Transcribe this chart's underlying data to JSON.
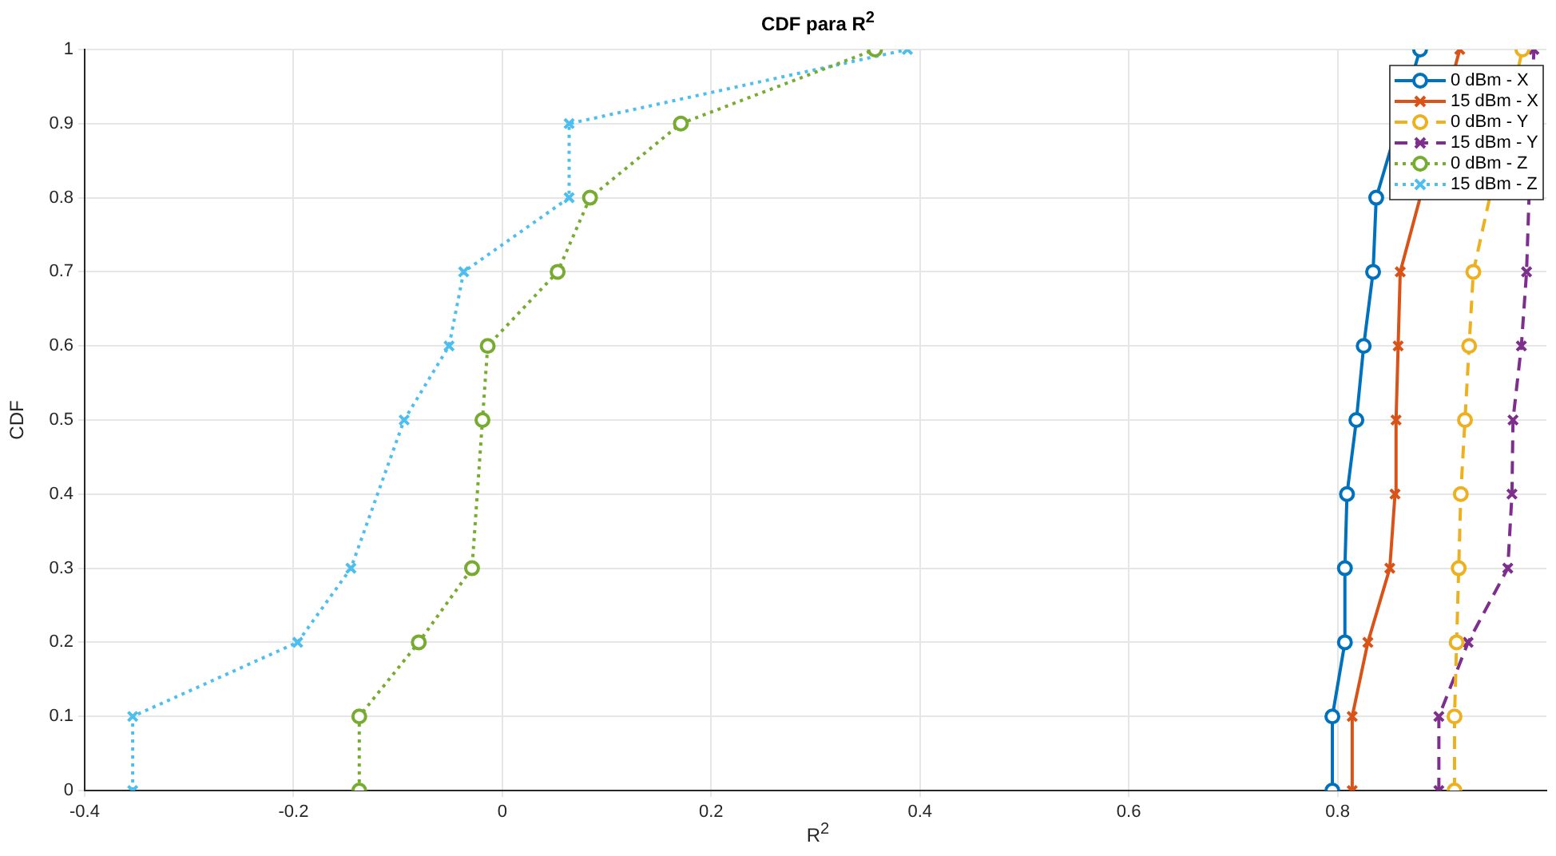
{
  "chart_data": {
    "type": "line",
    "title": "CDF para R$^{2}$",
    "xlabel": "R$^{2}$",
    "ylabel": "CDF",
    "xlim": [
      -0.4,
      1
    ],
    "xticks": [
      -0.4,
      -0.2,
      0,
      0.2,
      0.4,
      0.6,
      0.8
    ],
    "ylim": [
      0,
      1
    ],
    "yticks": [
      0,
      0.1,
      0.2,
      0.3,
      0.4,
      0.5,
      0.6,
      0.7,
      0.8,
      0.9,
      1
    ],
    "grid": true,
    "legend": "top right",
    "series": [
      {
        "name": "0 dBm - X",
        "color": "#0072bd",
        "marker": "circle",
        "line_style": "solid",
        "x": [
          0.795,
          0.795,
          0.807,
          0.807,
          0.809,
          0.818,
          0.825,
          0.834,
          0.837,
          0.879
        ],
        "values": [
          0,
          0.1,
          0.2,
          0.3,
          0.4,
          0.5,
          0.6,
          0.7,
          0.8,
          1
        ]
      },
      {
        "name": "15 dBm - X",
        "color": "#d95319",
        "marker": "cross",
        "line_style": "solid",
        "x": [
          0.814,
          0.814,
          0.829,
          0.85,
          0.855,
          0.856,
          0.858,
          0.86,
          0.917
        ],
        "values": [
          0,
          0.1,
          0.2,
          0.3,
          0.4,
          0.5,
          0.6,
          0.7,
          1
        ]
      },
      {
        "name": "0 dBm - Y",
        "color": "#edb120",
        "marker": "circle",
        "line_style": "dashed",
        "x": [
          0.912,
          0.912,
          0.914,
          0.916,
          0.918,
          0.922,
          0.926,
          0.93,
          0.977
        ],
        "values": [
          0,
          0.1,
          0.2,
          0.3,
          0.4,
          0.5,
          0.6,
          0.7,
          1
        ]
      },
      {
        "name": "15 dBm - Y",
        "color": "#7e2f8e",
        "marker": "cross",
        "line_style": "dashed",
        "x": [
          0.897,
          0.897,
          0.925,
          0.963,
          0.967,
          0.968,
          0.976,
          0.981,
          0.988
        ],
        "values": [
          0,
          0.1,
          0.2,
          0.3,
          0.4,
          0.5,
          0.6,
          0.7,
          1
        ]
      },
      {
        "name": "0 dBm - Z",
        "color": "#77ac30",
        "marker": "circle",
        "line_style": "dotted",
        "x": [
          -0.137,
          -0.137,
          -0.08,
          -0.029,
          -0.019,
          -0.014,
          0.053,
          0.084,
          0.171,
          0.357
        ],
        "values": [
          0,
          0.1,
          0.2,
          0.3,
          0.5,
          0.6,
          0.7,
          0.8,
          0.9,
          1
        ]
      },
      {
        "name": "15 dBm - Z",
        "color": "#4dbeee",
        "marker": "cross",
        "line_style": "dotted",
        "x": [
          -0.354,
          -0.354,
          -0.196,
          -0.145,
          -0.094,
          -0.051,
          -0.037,
          0.064,
          0.064,
          0.388
        ],
        "values": [
          0,
          0.1,
          0.2,
          0.3,
          0.5,
          0.6,
          0.7,
          0.8,
          0.9,
          1
        ]
      }
    ]
  }
}
